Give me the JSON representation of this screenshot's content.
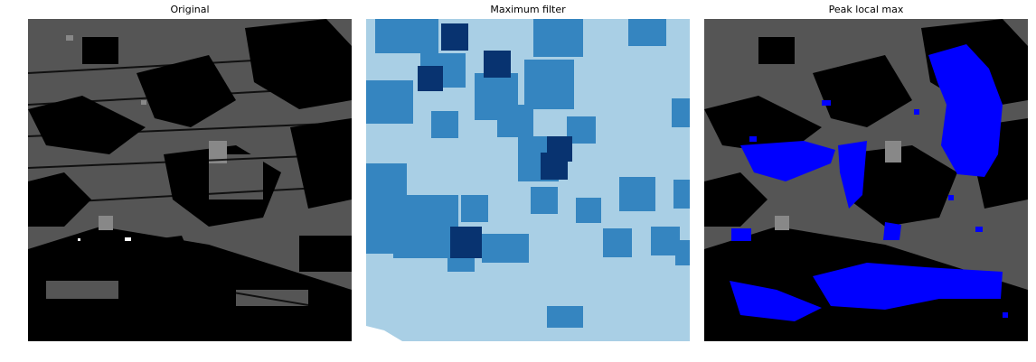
{
  "panels": [
    {
      "title": "Original"
    },
    {
      "title": "Maximum filter"
    },
    {
      "title": "Peak local max"
    }
  ],
  "colors": {
    "original_background": "#000000",
    "original_dark_gray": "#555555",
    "original_light_gray": "#888888",
    "original_white": "#ffffff",
    "maxfilter_background": "#a9cfe5",
    "maxfilter_mid_blue": "#3585c0",
    "maxfilter_dark_blue": "#083370",
    "peak_marker_blue": "#0000ff"
  }
}
